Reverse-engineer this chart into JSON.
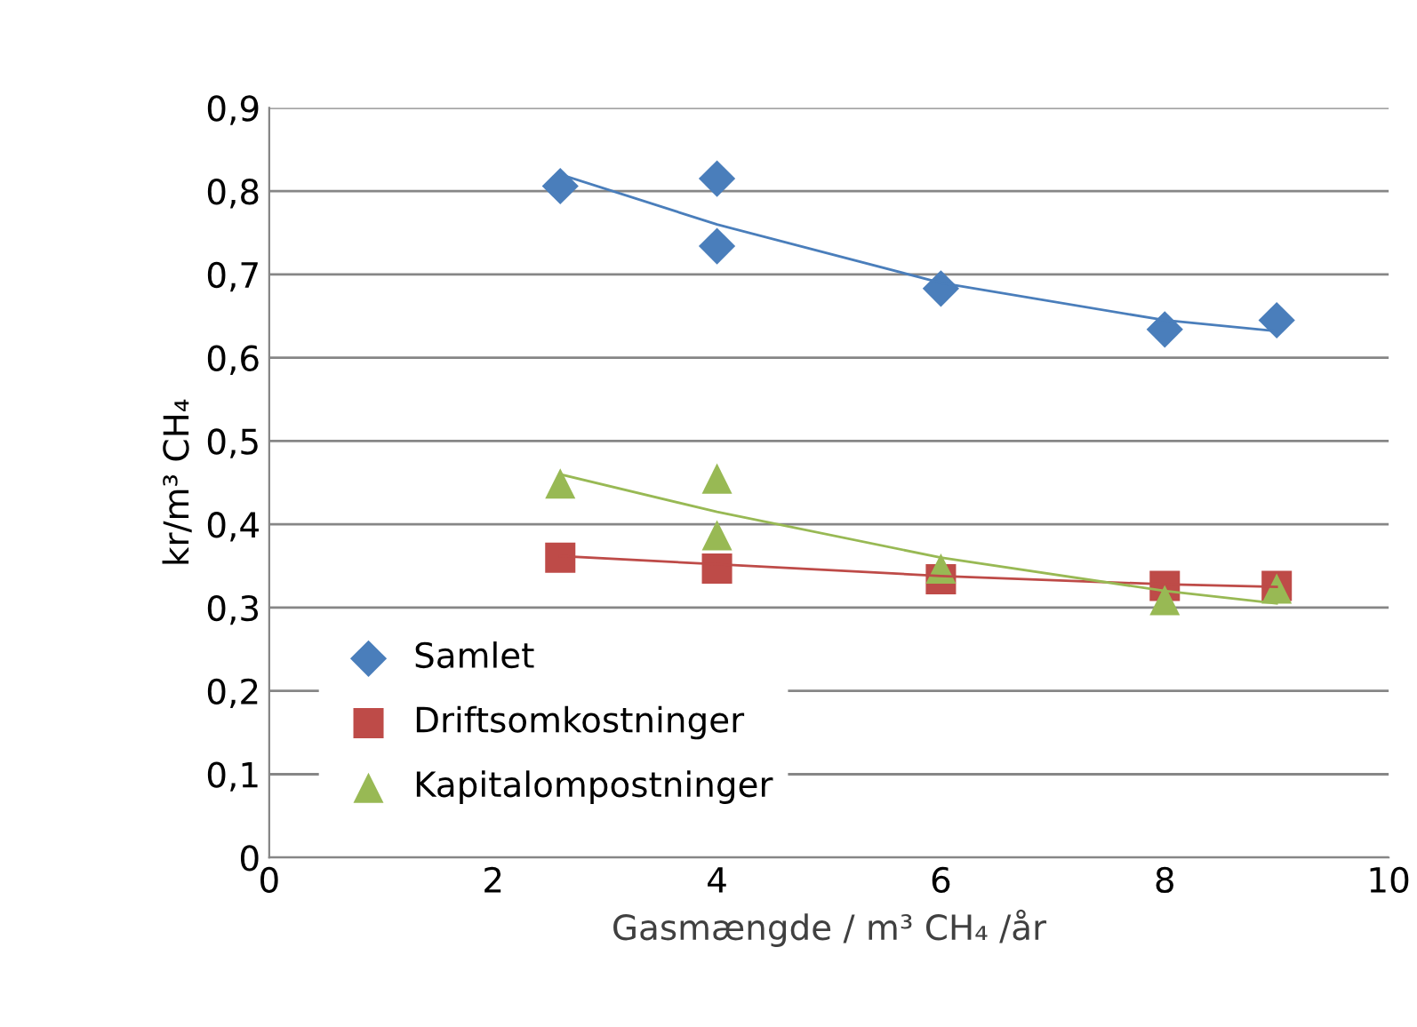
{
  "chart_data": {
    "type": "scatter",
    "xlabel": "Gasmængde / m³ CH₄ /år",
    "ylabel": "kr/m³ CH₄",
    "xlim": [
      0,
      10
    ],
    "xticks": [
      0,
      2,
      4,
      6,
      8,
      10
    ],
    "ylim": [
      0,
      0.9
    ],
    "yticks": [
      {
        "value": 0,
        "label": "0"
      },
      {
        "value": 0.1,
        "label": "0,1"
      },
      {
        "value": 0.2,
        "label": "0,2"
      },
      {
        "value": 0.3,
        "label": "0,3"
      },
      {
        "value": 0.4,
        "label": "0,4"
      },
      {
        "value": 0.5,
        "label": "0,5"
      },
      {
        "value": 0.6,
        "label": "0,6"
      },
      {
        "value": 0.7,
        "label": "0,7"
      },
      {
        "value": 0.8,
        "label": "0,8"
      },
      {
        "value": 0.9,
        "label": "0,9"
      }
    ],
    "grid": "y",
    "legend": "bottom left",
    "series": [
      {
        "name": "Samlet",
        "color": "#4a7ebb",
        "marker": "diamond",
        "x": [
          2.6,
          4,
          4,
          6,
          8,
          9
        ],
        "values": [
          0.806,
          0.815,
          0.734,
          0.683,
          0.634,
          0.645
        ]
      },
      {
        "name": "Driftsomkostninger",
        "color": "#be4b48",
        "marker": "square",
        "x": [
          2.6,
          4,
          6,
          8,
          9
        ],
        "values": [
          0.36,
          0.347,
          0.334,
          0.326,
          0.326
        ]
      },
      {
        "name": "Kapitalompostninger",
        "color": "#98b954",
        "marker": "triangle",
        "x": [
          2.6,
          4,
          4,
          6,
          8,
          9
        ],
        "values": [
          0.449,
          0.455,
          0.387,
          0.347,
          0.309,
          0.323
        ]
      },
      {
        "type": "line",
        "color": "#4a7ebb",
        "x": [
          2.6,
          4,
          6,
          8,
          9
        ],
        "values": [
          0.82,
          0.76,
          0.69,
          0.645,
          0.632
        ]
      },
      {
        "type": "line",
        "color": "#be4b48",
        "x": [
          2.6,
          4,
          6,
          8,
          9
        ],
        "values": [
          0.362,
          0.352,
          0.338,
          0.328,
          0.325
        ]
      },
      {
        "type": "line",
        "color": "#98b954",
        "x": [
          2.6,
          4,
          6,
          8,
          9
        ],
        "values": [
          0.46,
          0.415,
          0.36,
          0.32,
          0.305
        ]
      }
    ]
  }
}
